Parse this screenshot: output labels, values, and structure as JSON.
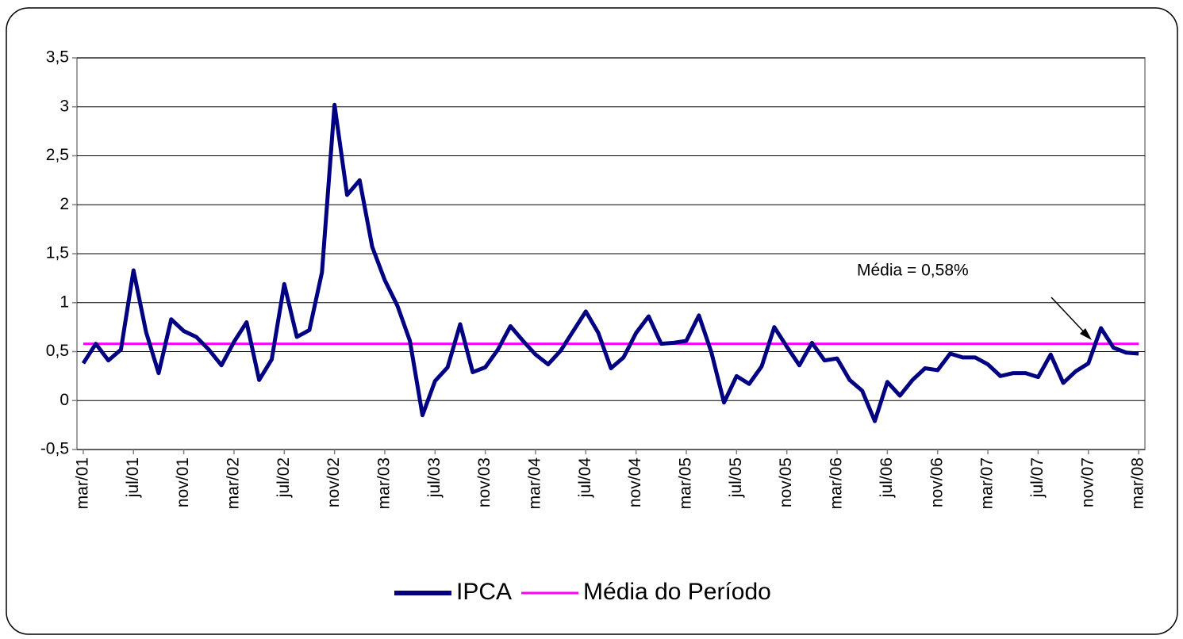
{
  "chart_data": {
    "type": "line",
    "categories": [
      "mar/01",
      null,
      null,
      null,
      "jul/01",
      null,
      null,
      null,
      "nov/01",
      null,
      null,
      null,
      "mar/02",
      null,
      null,
      null,
      "jul/02",
      null,
      null,
      null,
      "nov/02",
      null,
      null,
      null,
      "mar/03",
      null,
      null,
      null,
      "jul/03",
      null,
      null,
      null,
      "nov/03",
      null,
      null,
      null,
      "mar/04",
      null,
      null,
      null,
      "jul/04",
      null,
      null,
      null,
      "nov/04",
      null,
      null,
      null,
      "mar/05",
      null,
      null,
      null,
      "jul/05",
      null,
      null,
      null,
      "nov/05",
      null,
      null,
      null,
      "mar/06",
      null,
      null,
      null,
      "jul/06",
      null,
      null,
      null,
      "nov/06",
      null,
      null,
      null,
      "mar/07",
      null,
      null,
      null,
      "jul/07",
      null,
      null,
      null,
      "nov/07",
      null,
      null,
      null,
      "mar/08"
    ],
    "series": [
      {
        "name": "IPCA",
        "color": "#000080",
        "values": [
          0.38,
          0.58,
          0.41,
          0.52,
          1.33,
          0.7,
          0.28,
          0.83,
          0.71,
          0.65,
          0.52,
          0.36,
          0.6,
          0.8,
          0.21,
          0.42,
          1.19,
          0.65,
          0.72,
          1.31,
          3.02,
          2.1,
          2.25,
          1.57,
          1.23,
          0.97,
          0.61,
          -0.15,
          0.2,
          0.34,
          0.78,
          0.29,
          0.34,
          0.52,
          0.76,
          0.61,
          0.47,
          0.37,
          0.51,
          0.71,
          0.91,
          0.69,
          0.33,
          0.44,
          0.69,
          0.86,
          0.58,
          0.59,
          0.61,
          0.87,
          0.49,
          -0.02,
          0.25,
          0.17,
          0.35,
          0.75,
          0.55,
          0.36,
          0.59,
          0.41,
          0.43,
          0.21,
          0.1,
          -0.21,
          0.19,
          0.05,
          0.21,
          0.33,
          0.31,
          0.48,
          0.44,
          0.44,
          0.37,
          0.25,
          0.28,
          0.28,
          0.24,
          0.47,
          0.18,
          0.3,
          0.38,
          0.74,
          0.54,
          0.49,
          0.48
        ]
      },
      {
        "name": "Média do Período",
        "color": "#ff00ff",
        "values": [
          0.58,
          0.58,
          0.58,
          0.58,
          0.58,
          0.58,
          0.58,
          0.58,
          0.58,
          0.58,
          0.58,
          0.58,
          0.58,
          0.58,
          0.58,
          0.58,
          0.58,
          0.58,
          0.58,
          0.58,
          0.58,
          0.58,
          0.58,
          0.58,
          0.58,
          0.58,
          0.58,
          0.58,
          0.58,
          0.58,
          0.58,
          0.58,
          0.58,
          0.58,
          0.58,
          0.58,
          0.58,
          0.58,
          0.58,
          0.58,
          0.58,
          0.58,
          0.58,
          0.58,
          0.58,
          0.58,
          0.58,
          0.58,
          0.58,
          0.58,
          0.58,
          0.58,
          0.58,
          0.58,
          0.58,
          0.58,
          0.58,
          0.58,
          0.58,
          0.58,
          0.58,
          0.58,
          0.58,
          0.58,
          0.58,
          0.58,
          0.58,
          0.58,
          0.58,
          0.58,
          0.58,
          0.58,
          0.58,
          0.58,
          0.58,
          0.58,
          0.58,
          0.58,
          0.58,
          0.58,
          0.58,
          0.58,
          0.58,
          0.58,
          0.58
        ]
      }
    ],
    "annotation": "Média = 0,58%",
    "ylim": [
      -0.5,
      3.5
    ],
    "yticks": [
      {
        "value": -0.5,
        "label": "-0,5"
      },
      0,
      {
        "value": 0.5,
        "label": "0,5"
      },
      1,
      {
        "value": 1.5,
        "label": "1,5"
      },
      2,
      {
        "value": 2.5,
        "label": "2,5"
      },
      3,
      {
        "value": 3.5,
        "label": "3,5"
      }
    ],
    "grid": true,
    "legend": "bottom"
  }
}
